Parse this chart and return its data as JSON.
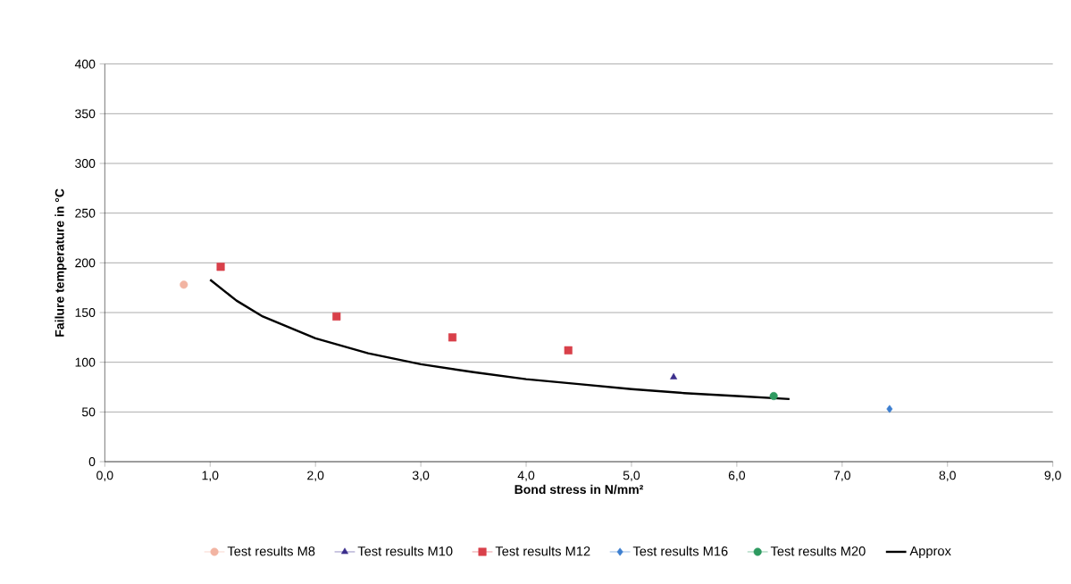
{
  "chart_data": {
    "type": "scatter",
    "xlabel": "Bond stress  in N/mm²",
    "ylabel": "Failure temperature  in  °C",
    "xlim": [
      0,
      9
    ],
    "ylim": [
      0,
      400
    ],
    "xticks": [
      {
        "value": 0,
        "label": "0,0"
      },
      {
        "value": 1,
        "label": "1,0"
      },
      {
        "value": 2,
        "label": "2,0"
      },
      {
        "value": 3,
        "label": "3,0"
      },
      {
        "value": 4,
        "label": "4,0"
      },
      {
        "value": 5,
        "label": "5,0"
      },
      {
        "value": 6,
        "label": "6,0"
      },
      {
        "value": 7,
        "label": "7,0"
      },
      {
        "value": 8,
        "label": "8,0"
      },
      {
        "value": 9,
        "label": "9,0"
      }
    ],
    "yticks": [
      0,
      50,
      100,
      150,
      200,
      250,
      300,
      350,
      400
    ],
    "grid": "y",
    "legend": "bottom",
    "series": [
      {
        "name": "Test results M8",
        "marker": "circle",
        "color": "#f2b4a2",
        "x": [
          0.75
        ],
        "values": [
          178
        ]
      },
      {
        "name": "Test results M10",
        "marker": "triangle",
        "color": "#3a2e8c",
        "x": [
          5.4
        ],
        "values": [
          85
        ]
      },
      {
        "name": "Test results M12",
        "marker": "square",
        "color": "#d9404a",
        "x": [
          1.1,
          2.2,
          3.3,
          4.4
        ],
        "values": [
          196,
          146,
          125,
          112
        ]
      },
      {
        "name": "Test results M16",
        "marker": "diamond",
        "color": "#3d7fd0",
        "x": [
          7.45
        ],
        "values": [
          53
        ]
      },
      {
        "name": "Test results M20",
        "marker": "circle",
        "color": "#2e9a60",
        "x": [
          6.35
        ],
        "values": [
          66
        ]
      },
      {
        "name": "Approx",
        "type": "line",
        "marker": "none",
        "line_style": "solid",
        "color": "#000000",
        "x": [
          1.0,
          1.25,
          1.5,
          2.0,
          2.5,
          3.0,
          3.5,
          4.0,
          4.5,
          5.0,
          5.5,
          6.0,
          6.5
        ],
        "values": [
          183,
          162,
          146,
          124,
          109,
          98,
          90,
          83,
          78,
          73,
          69,
          66,
          63
        ]
      }
    ]
  }
}
